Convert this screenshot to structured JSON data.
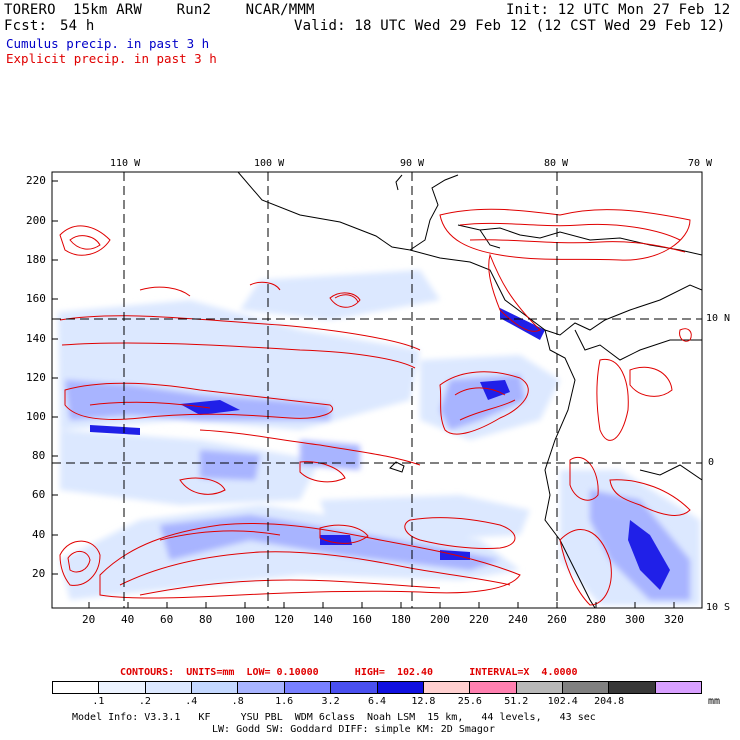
{
  "header": {
    "model": "TORERO  15km ARW    Run2    NCAR/MMM",
    "init": "Init: 12 UTC Mon 27 Feb 12",
    "fcst_label": "Fcst:",
    "fcst_value": "54 h",
    "valid": "Valid: 18 UTC Wed 29 Feb 12 (12 CST Wed 29 Feb 12)"
  },
  "legend": {
    "cumulus": "Cumulus precip. in past 3 h",
    "explicit": "Explicit precip. in past 3 h",
    "cumulus_color": "#0000c8",
    "explicit_color": "#e00000"
  },
  "map": {
    "top_lon_labels": [
      "110 W",
      "100 W",
      "90 W",
      "80 W",
      "70 W"
    ],
    "right_lat_labels": [
      "10 N",
      "0",
      "10 S"
    ],
    "left_y_ticks": [
      "220",
      "200",
      "180",
      "160",
      "140",
      "120",
      "100",
      "80",
      "60",
      "40",
      "20"
    ],
    "bottom_x_ticks": [
      "20",
      "40",
      "60",
      "80",
      "100",
      "120",
      "140",
      "160",
      "180",
      "200",
      "220",
      "240",
      "260",
      "280",
      "300",
      "320"
    ],
    "coast_color": "#000000",
    "contour_color": "#e00000",
    "grid_style": "dashed"
  },
  "contours_info": {
    "text": "CONTOURS:  UNITS=mm  LOW= 0.10000      HIGH=  102.40      INTERVAL=X  4.0000"
  },
  "colorbar": {
    "colors": [
      "#ffffff",
      "#ecf3ff",
      "#dce8ff",
      "#c4d8ff",
      "#a8b4ff",
      "#7880ff",
      "#4a50f0",
      "#1010e0",
      "#ffd0d0",
      "#ff80b0",
      "#b8b8b8",
      "#808080",
      "#383838",
      "#d8a0ff"
    ],
    "labels": [
      ".1",
      ".2",
      ".4",
      ".8",
      "1.6",
      "3.2",
      "6.4",
      "12.8",
      "25.6",
      "51.2",
      "102.4",
      "204.8"
    ],
    "units": "mm"
  },
  "footer": {
    "line1": "Model Info: V3.3.1   KF     YSU PBL  WDM 6class  Noah LSM  15 km,   44 levels,   43 sec",
    "line2": "LW: Godd SW: Goddard DIFF: simple KM: 2D Smagor"
  }
}
